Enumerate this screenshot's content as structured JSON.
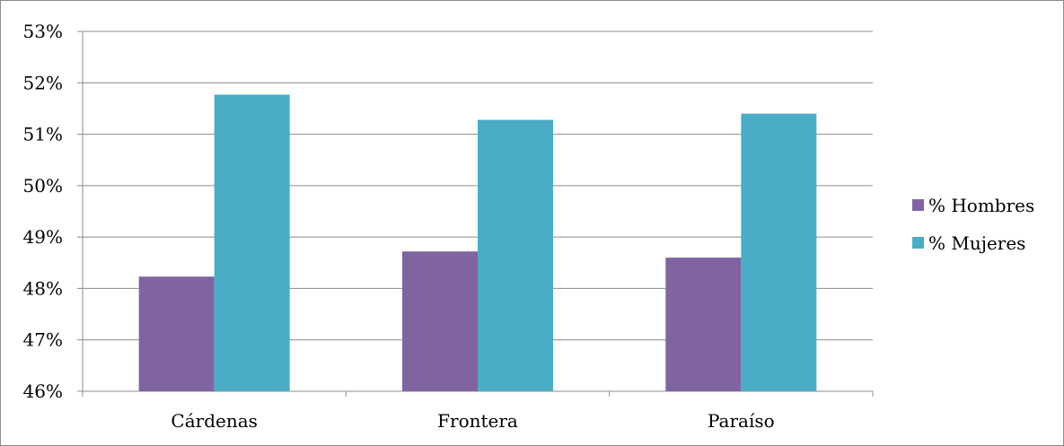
{
  "chart_data": {
    "type": "bar",
    "categories": [
      "Cárdenas",
      "Frontera",
      "Paraíso"
    ],
    "series": [
      {
        "name": "% Hombres",
        "values": [
          48.23,
          48.72,
          48.6
        ],
        "color": "#8064a2"
      },
      {
        "name": "% Mujeres",
        "values": [
          51.77,
          51.28,
          51.4
        ],
        "color": "#4bacc6"
      }
    ],
    "ylim": [
      46,
      53
    ],
    "yticks": [
      46,
      47,
      48,
      49,
      50,
      51,
      52,
      53
    ],
    "y_tick_labels": [
      "46%",
      "47%",
      "48%",
      "49%",
      "50%",
      "51%",
      "52%",
      "53%"
    ],
    "grid": true,
    "legend_position": "right",
    "title": "",
    "xlabel": "",
    "ylabel": ""
  }
}
